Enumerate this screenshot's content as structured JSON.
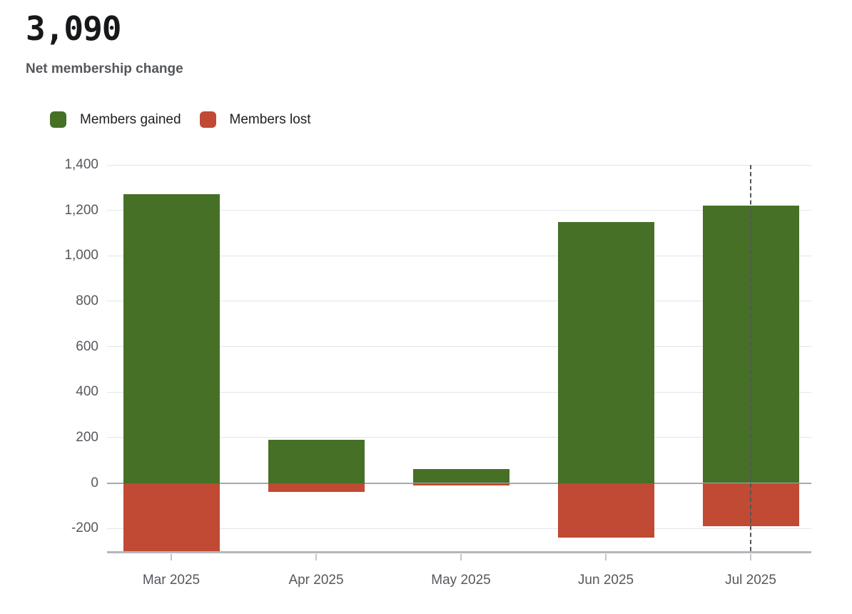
{
  "header": {
    "value": "3,090",
    "label": "Net membership change"
  },
  "chart_data": {
    "type": "bar",
    "variant": "diverging-stacked",
    "title": "Net membership change",
    "headline_value": "3,090",
    "categories": [
      "Mar 2025",
      "Apr 2025",
      "May 2025",
      "Jun 2025",
      "Jul 2025"
    ],
    "series": [
      {
        "name": "Members gained",
        "color": "#467026",
        "values": [
          1270,
          190,
          60,
          1150,
          1220
        ]
      },
      {
        "name": "Members lost",
        "color": "#c04a33",
        "values": [
          -320,
          -40,
          -10,
          -240,
          -190
        ]
      }
    ],
    "xlabel": "",
    "ylabel": "",
    "ylim": [
      -300,
      1400
    ],
    "yticks": [
      1400,
      1200,
      1000,
      800,
      600,
      400,
      200,
      0,
      -200
    ],
    "clip_bars_to_ylim": true,
    "grid": true,
    "legend_position": "top-left",
    "annotations": [
      {
        "type": "dashed-vline",
        "category": "Jul 2025"
      }
    ]
  }
}
